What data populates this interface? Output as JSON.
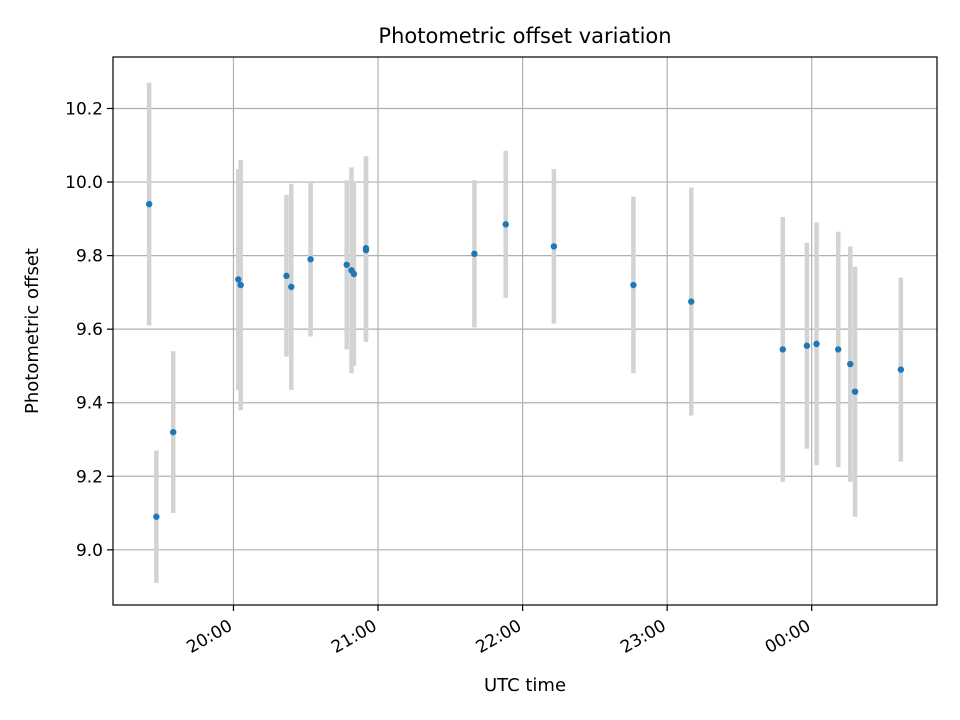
{
  "chart_data": {
    "type": "scatter",
    "title": "Photometric offset variation",
    "xlabel": "UTC time",
    "ylabel": "Photometric offset",
    "x_axis_kind": "time",
    "x_range": [
      "19:10",
      "24:52"
    ],
    "ylim": [
      8.85,
      10.34
    ],
    "grid": true,
    "x_ticks": [
      {
        "value": "20:00",
        "label": "20:00"
      },
      {
        "value": "21:00",
        "label": "21:00"
      },
      {
        "value": "22:00",
        "label": "22:00"
      },
      {
        "value": "23:00",
        "label": "23:00"
      },
      {
        "value": "24:00",
        "label": "00:00"
      }
    ],
    "y_ticks": [
      9.0,
      9.2,
      9.4,
      9.6,
      9.8,
      10.0,
      10.2
    ],
    "y_tick_labels": [
      "9.0",
      "9.2",
      "9.4",
      "9.6",
      "9.8",
      "10.0",
      "10.2"
    ],
    "marker_color": "#1f77b4",
    "errorbar_color": "#d3d3d3",
    "points": [
      {
        "time": "19:25",
        "y": 9.94,
        "err": 0.33
      },
      {
        "time": "19:28",
        "y": 9.09,
        "err": 0.18
      },
      {
        "time": "19:35",
        "y": 9.32,
        "err": 0.22
      },
      {
        "time": "20:02",
        "y": 9.735,
        "err": 0.3
      },
      {
        "time": "20:03",
        "y": 9.72,
        "err": 0.34
      },
      {
        "time": "20:22",
        "y": 9.745,
        "err": 0.22
      },
      {
        "time": "20:24",
        "y": 9.715,
        "err": 0.28
      },
      {
        "time": "20:32",
        "y": 9.79,
        "err": 0.21
      },
      {
        "time": "20:47",
        "y": 9.775,
        "err": 0.23
      },
      {
        "time": "20:49",
        "y": 9.76,
        "err": 0.28
      },
      {
        "time": "20:50",
        "y": 9.75,
        "err": 0.25
      },
      {
        "time": "20:55",
        "y": 9.82,
        "err": 0.25
      },
      {
        "time": "20:55",
        "y": 9.815,
        "err": 0.25
      },
      {
        "time": "21:40",
        "y": 9.805,
        "err": 0.2
      },
      {
        "time": "21:53",
        "y": 9.885,
        "err": 0.2
      },
      {
        "time": "22:13",
        "y": 9.825,
        "err": 0.21
      },
      {
        "time": "22:46",
        "y": 9.72,
        "err": 0.24
      },
      {
        "time": "23:10",
        "y": 9.675,
        "err": 0.31
      },
      {
        "time": "23:48",
        "y": 9.545,
        "err": 0.36
      },
      {
        "time": "23:58",
        "y": 9.555,
        "err": 0.28
      },
      {
        "time": "24:02",
        "y": 9.56,
        "err": 0.33
      },
      {
        "time": "24:11",
        "y": 9.545,
        "err": 0.32
      },
      {
        "time": "24:16",
        "y": 9.505,
        "err": 0.32
      },
      {
        "time": "24:18",
        "y": 9.43,
        "err": 0.34
      },
      {
        "time": "24:37",
        "y": 9.49,
        "err": 0.25
      }
    ]
  }
}
